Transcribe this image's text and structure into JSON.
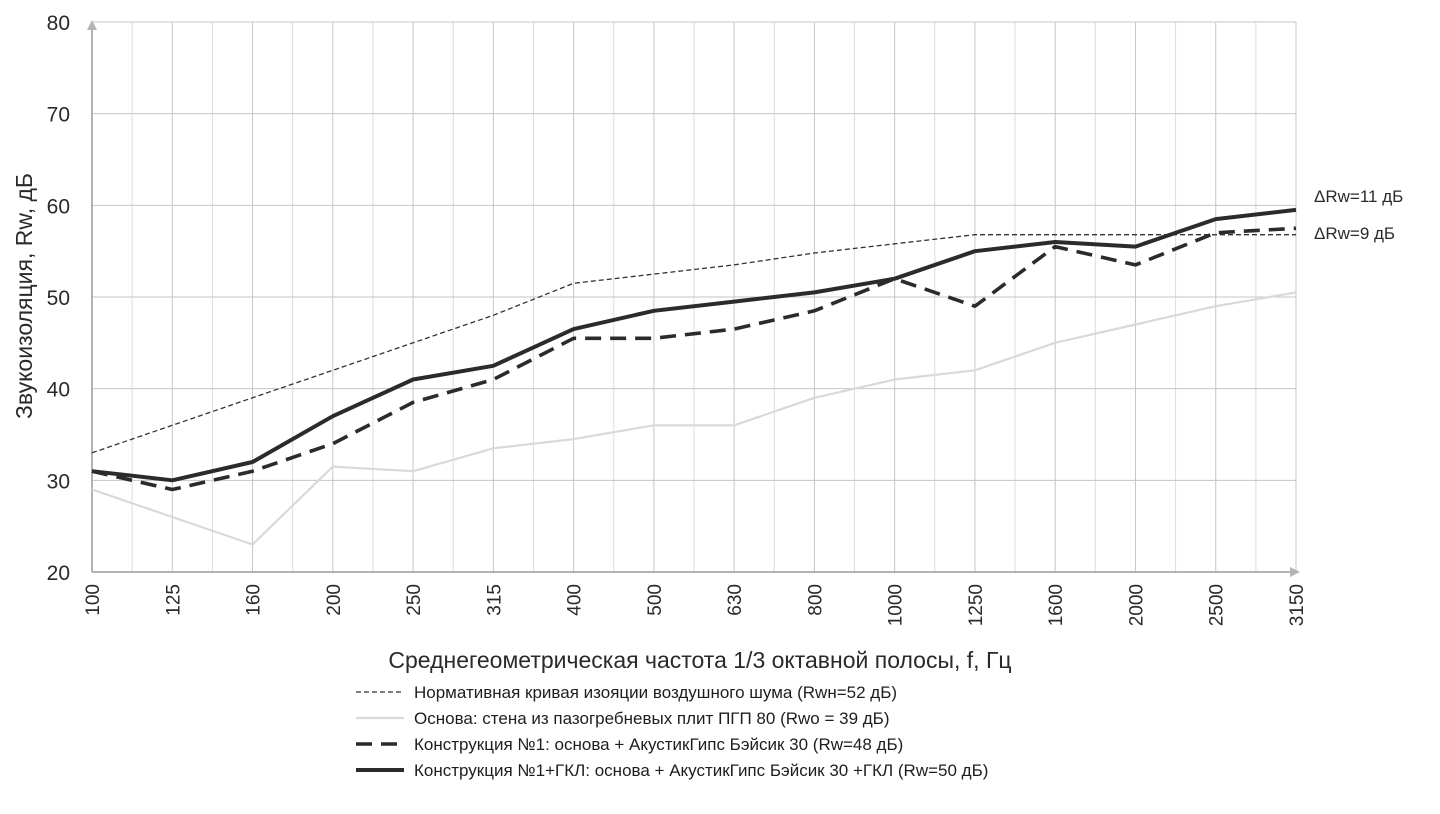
{
  "chart_data": {
    "type": "line",
    "xlabel": "Среднегеометрическая частота 1/3 октавной полосы, f, Гц",
    "ylabel": "Звукоизоляция, Rw, дБ",
    "ylim": [
      20,
      80
    ],
    "yticks": [
      20,
      30,
      40,
      50,
      60,
      70,
      80
    ],
    "categories": [
      "100",
      "125",
      "160",
      "200",
      "250",
      "315",
      "400",
      "500",
      "630",
      "800",
      "1000",
      "1250",
      "1600",
      "2000",
      "2500",
      "3150"
    ],
    "grid": true,
    "legend_position": "bottom",
    "series": [
      {
        "name": "Нормативная кривая изояции воздушного шума (Rwн=52 дБ)",
        "style": "dotted",
        "color": "#333333",
        "values": [
          33,
          36,
          39,
          42,
          45,
          48,
          51.5,
          52.5,
          53.5,
          54.8,
          55.8,
          56.8,
          56.8,
          56.8,
          56.8,
          56.8
        ]
      },
      {
        "name": "Основа: стена из пазогребневых плит ПГП 80 (Rwo = 39 дБ)",
        "style": "solid-light",
        "color": "#d9d9d9",
        "values": [
          29,
          26,
          23,
          31.5,
          31,
          33.5,
          34.5,
          36,
          36,
          39,
          41,
          42,
          45,
          47,
          49,
          50.5
        ]
      },
      {
        "name": "Конструкция №1: основа + АкустикГипс Бэйсик 30 (Rw=48 дБ)",
        "style": "dashed",
        "color": "#2b2b2b",
        "values": [
          31,
          29,
          31,
          34,
          38.5,
          41,
          45.5,
          45.5,
          46.5,
          48.5,
          52,
          49,
          55.5,
          53.5,
          57,
          57.5
        ]
      },
      {
        "name": "Конструкция №1+ГКЛ: основа + АкустикГипс Бэйсик 30 +ГКЛ (Rw=50 дБ)",
        "style": "solid-thick",
        "color": "#2b2b2b",
        "values": [
          31,
          30,
          32,
          37,
          41,
          42.5,
          46.5,
          48.5,
          49.5,
          50.5,
          52,
          55,
          56,
          55.5,
          58.5,
          59.5
        ]
      }
    ],
    "annotations": [
      {
        "text": "ΔRw=11 дБ",
        "x": "3150",
        "y": 61
      },
      {
        "text": "ΔRw=9 дБ",
        "x": "3150",
        "y": 57
      }
    ]
  }
}
